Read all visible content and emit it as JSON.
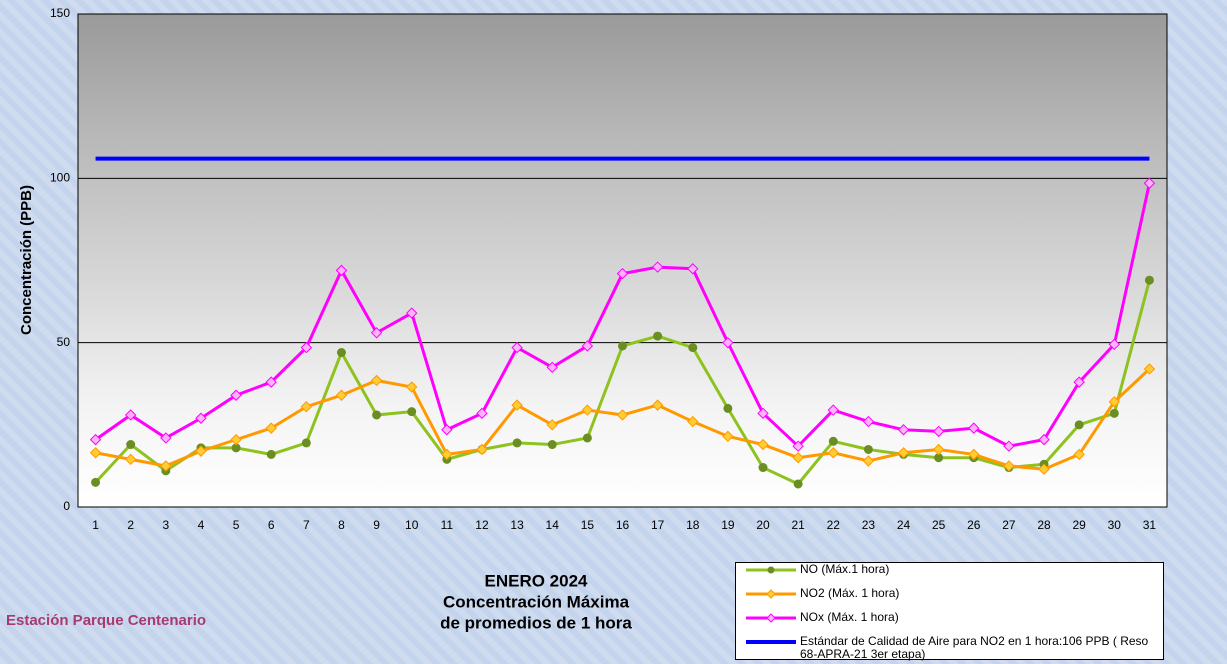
{
  "chart_data": {
    "type": "line",
    "title": [
      "ENERO 2024",
      "Concentración Máxima",
      "de promedios de 1 hora"
    ],
    "subtitle": "Estación Parque Centenario",
    "y_label": "Concentración  (PPB)",
    "categories": [
      "1",
      "2",
      "3",
      "4",
      "5",
      "6",
      "7",
      "8",
      "9",
      "10",
      "11",
      "12",
      "13",
      "14",
      "15",
      "16",
      "17",
      "18",
      "19",
      "20",
      "21",
      "22",
      "23",
      "24",
      "25",
      "26",
      "27",
      "28",
      "29",
      "30",
      "31"
    ],
    "series": [
      {
        "name": "NO (Máx.1 hora)",
        "color": "#8dc21f",
        "marker": "circle",
        "marker_color": "#6b8e23",
        "values": [
          7.5,
          19,
          11,
          18,
          18,
          16,
          19.5,
          47,
          28,
          29,
          14.5,
          17.5,
          19.5,
          19,
          21,
          49,
          52,
          48.5,
          30,
          12,
          7,
          20,
          17.5,
          16,
          15,
          15,
          12,
          13,
          25,
          28.5,
          69
        ]
      },
      {
        "name": "NO2 (Máx. 1 hora)",
        "color": "#ff9900",
        "marker": "diamond",
        "marker_color": "#ffcc33",
        "values": [
          16.5,
          14.5,
          12.5,
          17,
          20.5,
          24,
          30.5,
          34,
          38.5,
          36.5,
          16,
          17.5,
          31,
          25,
          29.5,
          28,
          31,
          26,
          21.5,
          19,
          15,
          16.5,
          14,
          16.5,
          17.5,
          16,
          12.5,
          11.5,
          16,
          32,
          42
        ]
      },
      {
        "name": "NOx (Máx. 1 hora)",
        "color": "#ff00ff",
        "marker": "diamond",
        "marker_color": "#ffb3ff",
        "values": [
          20.5,
          28,
          21,
          27,
          34,
          38,
          48.5,
          72,
          53,
          59,
          23.5,
          28.5,
          48.5,
          42.5,
          49,
          71,
          73,
          72.5,
          50,
          28.5,
          18.5,
          29.5,
          26,
          23.5,
          23,
          24,
          18.5,
          20.5,
          38,
          49.5,
          98.5
        ]
      },
      {
        "name": "Estándar de Calidad de Aire para NO2 en 1 hora:106 PPB ( Reso 68-APRA-21 3er etapa)",
        "color": "#0000ff",
        "marker": "none",
        "marker_color": "#0000ff",
        "values": [
          106,
          106,
          106,
          106,
          106,
          106,
          106,
          106,
          106,
          106,
          106,
          106,
          106,
          106,
          106,
          106,
          106,
          106,
          106,
          106,
          106,
          106,
          106,
          106,
          106,
          106,
          106,
          106,
          106,
          106,
          106
        ]
      }
    ],
    "ylim": [
      0,
      150
    ],
    "yticks": [
      0,
      50,
      100,
      150
    ],
    "grid": true
  }
}
